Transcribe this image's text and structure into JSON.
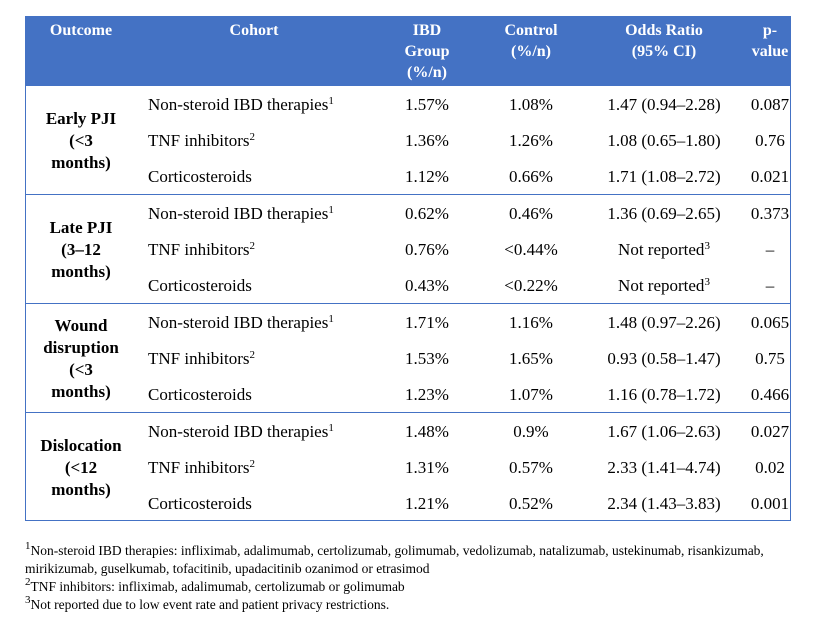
{
  "headers": {
    "outcome": "Outcome",
    "cohort": "Cohort",
    "ibd": [
      "IBD",
      "Group",
      "(%/n)"
    ],
    "control": [
      "Control",
      "(%/n)"
    ],
    "odds_ratio": [
      "Odds Ratio",
      "(95% CI)"
    ],
    "p_value": [
      "p-",
      "value"
    ]
  },
  "groups": [
    {
      "outcome": [
        "Early PJI",
        "(<3",
        "months)"
      ],
      "rows": [
        {
          "cohort": "Non-steroid IBD therapies",
          "sup": "1",
          "ibd": "1.57%",
          "control": "1.08%",
          "or": "1.47 (0.94–2.28)",
          "or_sup": "",
          "p": "0.087"
        },
        {
          "cohort": "TNF inhibitors",
          "sup": "2",
          "ibd": "1.36%",
          "control": "1.26%",
          "or": "1.08 (0.65–1.80)",
          "or_sup": "",
          "p": "0.76"
        },
        {
          "cohort": "Corticosteroids",
          "sup": "",
          "ibd": "1.12%",
          "control": "0.66%",
          "or": "1.71 (1.08–2.72)",
          "or_sup": "",
          "p": "0.021"
        }
      ]
    },
    {
      "outcome": [
        "Late PJI",
        "(3–12",
        "months)"
      ],
      "rows": [
        {
          "cohort": "Non-steroid IBD therapies",
          "sup": "1",
          "ibd": "0.62%",
          "control": "0.46%",
          "or": "1.36 (0.69–2.65)",
          "or_sup": "",
          "p": "0.373"
        },
        {
          "cohort": "TNF inhibitors",
          "sup": "2",
          "ibd": "0.76%",
          "control": "<0.44%",
          "or": "Not reported",
          "or_sup": "3",
          "p": "–"
        },
        {
          "cohort": "Corticosteroids",
          "sup": "",
          "ibd": "0.43%",
          "control": "<0.22%",
          "or": "Not reported",
          "or_sup": "3",
          "p": "–"
        }
      ]
    },
    {
      "outcome": [
        "Wound",
        "disruption",
        "(<3",
        "months)"
      ],
      "rows": [
        {
          "cohort": "Non-steroid IBD therapies",
          "sup": "1",
          "ibd": "1.71%",
          "control": "1.16%",
          "or": "1.48 (0.97–2.26)",
          "or_sup": "",
          "p": "0.065"
        },
        {
          "cohort": "TNF inhibitors",
          "sup": "2",
          "ibd": "1.53%",
          "control": "1.65%",
          "or": "0.93 (0.58–1.47)",
          "or_sup": "",
          "p": "0.75"
        },
        {
          "cohort": "Corticosteroids",
          "sup": "",
          "ibd": "1.23%",
          "control": "1.07%",
          "or": "1.16 (0.78–1.72)",
          "or_sup": "",
          "p": "0.466"
        }
      ]
    },
    {
      "outcome": [
        "Dislocation",
        "(<12",
        "months)"
      ],
      "rows": [
        {
          "cohort": "Non-steroid IBD therapies",
          "sup": "1",
          "ibd": "1.48%",
          "control": "0.9%",
          "or": "1.67 (1.06–2.63)",
          "or_sup": "",
          "p": "0.027"
        },
        {
          "cohort": "TNF inhibitors",
          "sup": "2",
          "ibd": "1.31%",
          "control": "0.57%",
          "or": "2.33 (1.41–4.74)",
          "or_sup": "",
          "p": "0.02"
        },
        {
          "cohort": "Corticosteroids",
          "sup": "",
          "ibd": "1.21%",
          "control": "0.52%",
          "or": "2.34 (1.43–3.83)",
          "or_sup": "",
          "p": "0.001"
        }
      ]
    }
  ],
  "footnotes": [
    {
      "mark": "1",
      "text": "Non-steroid IBD therapies: infliximab, adalimumab, certolizumab, golimumab, vedolizumab, natalizumab, ustekinumab, risankizumab, mirikizumab, guselkumab, tofacitinib, upadacitinib ozanimod or etrasimod"
    },
    {
      "mark": "2",
      "text": "TNF inhibitors: infliximab, adalimumab, certolizumab or golimumab"
    },
    {
      "mark": "3",
      "text": "Not reported due to low event rate and patient privacy restrictions."
    }
  ],
  "colors": {
    "header_bg": "#4472c4",
    "header_text": "#ffffff",
    "border": "#4472c4"
  }
}
